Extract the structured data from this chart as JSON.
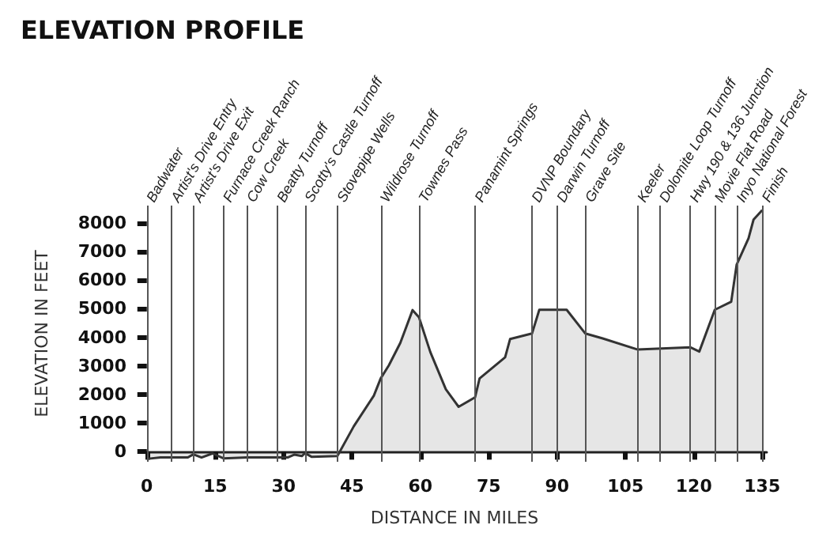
{
  "chart_data": {
    "type": "area",
    "title": "ELEVATION PROFILE",
    "xlabel": "DISTANCE IN MILES",
    "ylabel": "ELEVATION IN FEET",
    "x": [
      0,
      3,
      9,
      10.2,
      12,
      14.4,
      16.8,
      22,
      28.6,
      30.9,
      32.4,
      34,
      34.7,
      36.2,
      41.8,
      45.4,
      49.8,
      51.3,
      53.1,
      55.6,
      58.3,
      59.7,
      62.2,
      65.6,
      68.4,
      72,
      73,
      78.6,
      79.7,
      84.5,
      86.1,
      92.1,
      96.2,
      100,
      107.7,
      119.2,
      121.2,
      124.6,
      128.2,
      129.4,
      132,
      133.1,
      135
    ],
    "series": [
      {
        "color": "#333333",
        "values": [
          -250,
          -200,
          -200,
          -90,
          -200,
          -60,
          -230,
          -200,
          -200,
          -200,
          -100,
          -150,
          -50,
          -180,
          -150,
          890,
          1960,
          2560,
          3020,
          3800,
          4950,
          4700,
          3480,
          2180,
          1570,
          1900,
          2560,
          3300,
          3940,
          4130,
          4960,
          4960,
          4130,
          3960,
          3570,
          3650,
          3500,
          4960,
          5240,
          6540,
          7460,
          8110,
          8440
        ]
      }
    ],
    "xlim": [
      -1,
      136
    ],
    "xticks": [
      0,
      15,
      30,
      45,
      60,
      75,
      90,
      105,
      120,
      135
    ],
    "ylim": [
      -350,
      8600
    ],
    "yticks": [
      0,
      1000,
      2000,
      3000,
      4000,
      5000,
      6000,
      7000,
      8000
    ],
    "grid": false,
    "marker": "none",
    "line_style": "solid",
    "ref_lines": [
      {
        "axis": "x",
        "value": 0,
        "label": "Badwater"
      },
      {
        "axis": "x",
        "value": 5.4,
        "label": "Artist's Drive Entry"
      },
      {
        "axis": "x",
        "value": 10.2,
        "label": "Artist's Drive Exit"
      },
      {
        "axis": "x",
        "value": 16.8,
        "label": "Furnace Creek Ranch"
      },
      {
        "axis": "x",
        "value": 22,
        "label": "Cow Creek"
      },
      {
        "axis": "x",
        "value": 28.6,
        "label": "Beatty Turnoff"
      },
      {
        "axis": "x",
        "value": 34.7,
        "label": "Scotty's Castle Turnoff"
      },
      {
        "axis": "x",
        "value": 41.8,
        "label": "Stovepipe Wells"
      },
      {
        "axis": "x",
        "value": 51.3,
        "label": "Wildrose Turnoff"
      },
      {
        "axis": "x",
        "value": 59.7,
        "label": "Townes Pass"
      },
      {
        "axis": "x",
        "value": 72,
        "label": "Panamint Springs"
      },
      {
        "axis": "x",
        "value": 84.5,
        "label": "DVNP Boundary"
      },
      {
        "axis": "x",
        "value": 90,
        "label": "Darwin Turnoff"
      },
      {
        "axis": "x",
        "value": 96.2,
        "label": "Grave Site"
      },
      {
        "axis": "x",
        "value": 107.7,
        "label": "Keeler"
      },
      {
        "axis": "x",
        "value": 112.5,
        "label": "Dolomite Loop Turnoff"
      },
      {
        "axis": "x",
        "value": 119.2,
        "label": "Hwy 190 & 136 Junction"
      },
      {
        "axis": "x",
        "value": 124.6,
        "label": "Movie Flat Road"
      },
      {
        "axis": "x",
        "value": 129.4,
        "label": "Inyo National Forest"
      },
      {
        "axis": "x",
        "value": 135,
        "label": "Finish"
      }
    ]
  }
}
